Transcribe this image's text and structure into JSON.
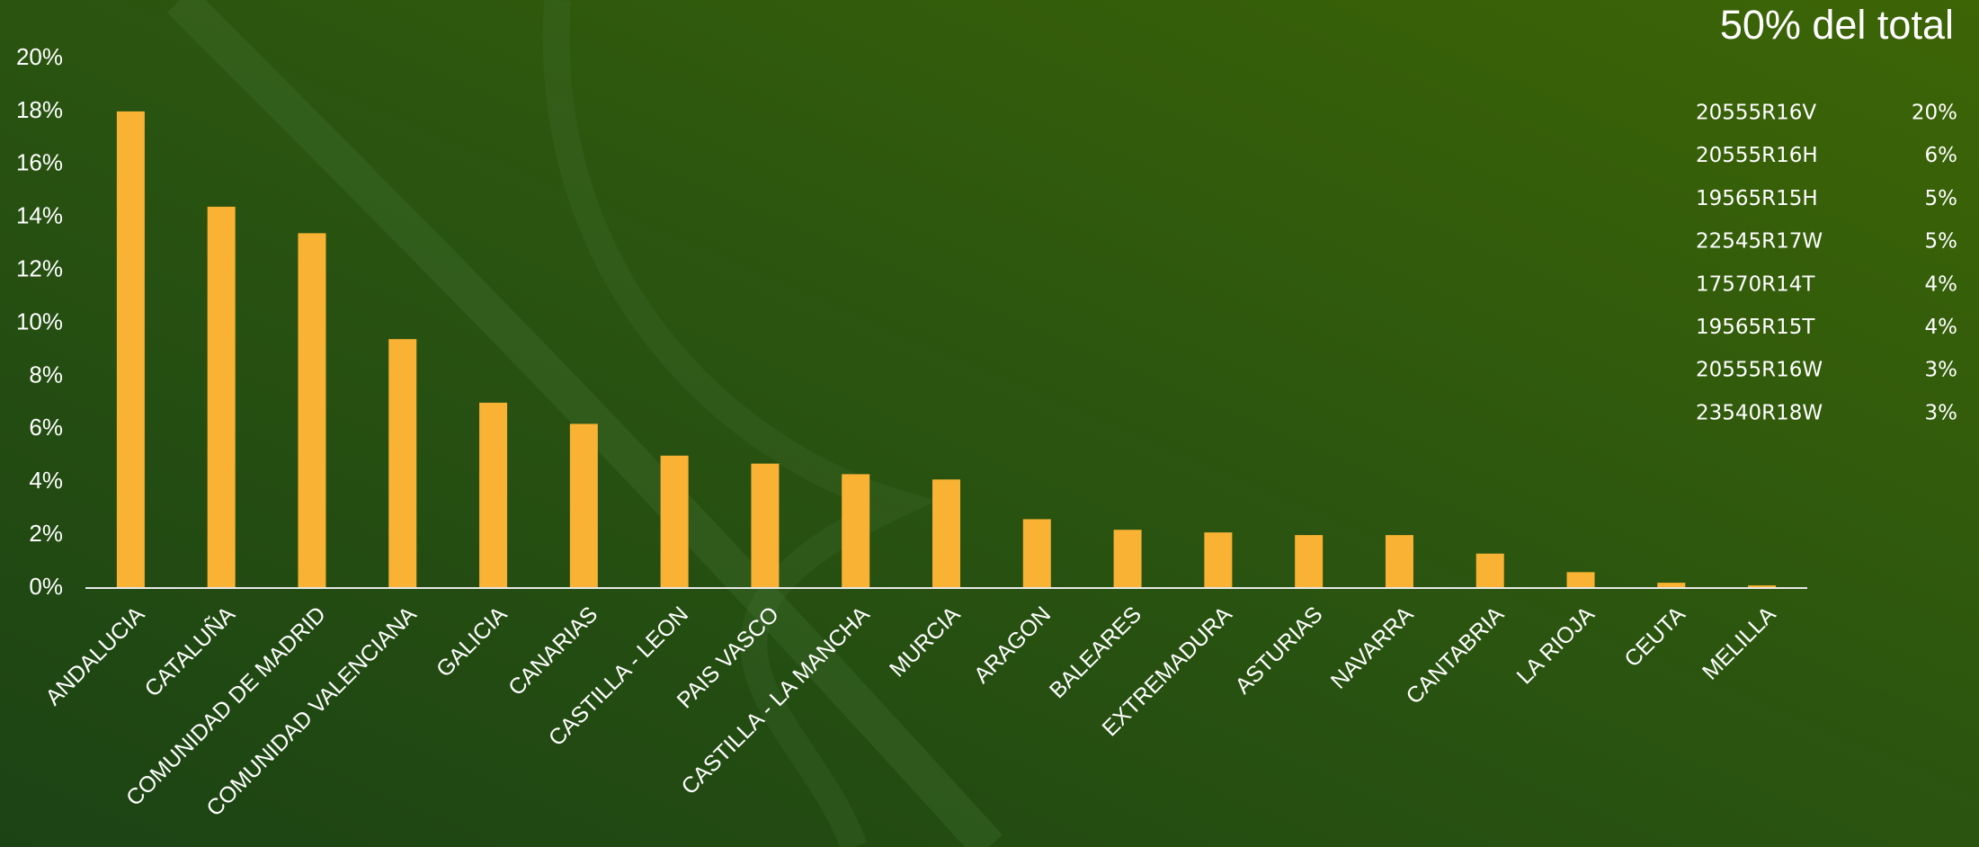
{
  "chart_data": {
    "type": "bar",
    "categories": [
      "ANDALUCIA",
      "CATALUÑA",
      "COMUNIDAD DE MADRID",
      "COMUNIDAD VALENCIANA",
      "GALICIA",
      "CANARIAS",
      "CASTILLA - LEON",
      "PAIS VASCO",
      "CASTILLA - LA MANCHA",
      "MURCIA",
      "ARAGON",
      "BALEARES",
      "EXTREMADURA",
      "ASTURIAS",
      "NAVARRA",
      "CANTABRIA",
      "LA RIOJA",
      "CEUTA",
      "MELILLA"
    ],
    "values": [
      18.0,
      14.4,
      13.4,
      9.4,
      7.0,
      6.2,
      5.0,
      4.7,
      4.3,
      4.1,
      2.6,
      2.2,
      2.1,
      2.0,
      2.0,
      1.3,
      0.6,
      0.2,
      0.1
    ],
    "color": "#f9b233",
    "ylim": [
      0,
      20
    ],
    "yticks": [
      {
        "value": 0,
        "label": "0%"
      },
      {
        "value": 2,
        "label": "2%"
      },
      {
        "value": 4,
        "label": "4%"
      },
      {
        "value": 6,
        "label": "6%"
      },
      {
        "value": 8,
        "label": "8%"
      },
      {
        "value": 10,
        "label": "10%"
      },
      {
        "value": 12,
        "label": "12%"
      },
      {
        "value": 14,
        "label": "14%"
      },
      {
        "value": 16,
        "label": "16%"
      },
      {
        "value": 18,
        "label": "18%"
      },
      {
        "value": 20,
        "label": "20%"
      }
    ],
    "grid": false
  },
  "top_models": {
    "title": "50% del total",
    "rows": [
      [
        "20555R16V",
        "20%"
      ],
      [
        "20555R16H",
        "6%"
      ],
      [
        "19565R15H",
        "5%"
      ],
      [
        "22545R17W",
        "5%"
      ],
      [
        "17570R14T",
        "4%"
      ],
      [
        "19565R15T",
        "4%"
      ],
      [
        "20555R16W",
        "3%"
      ],
      [
        "23540R18W",
        "3%"
      ]
    ]
  }
}
